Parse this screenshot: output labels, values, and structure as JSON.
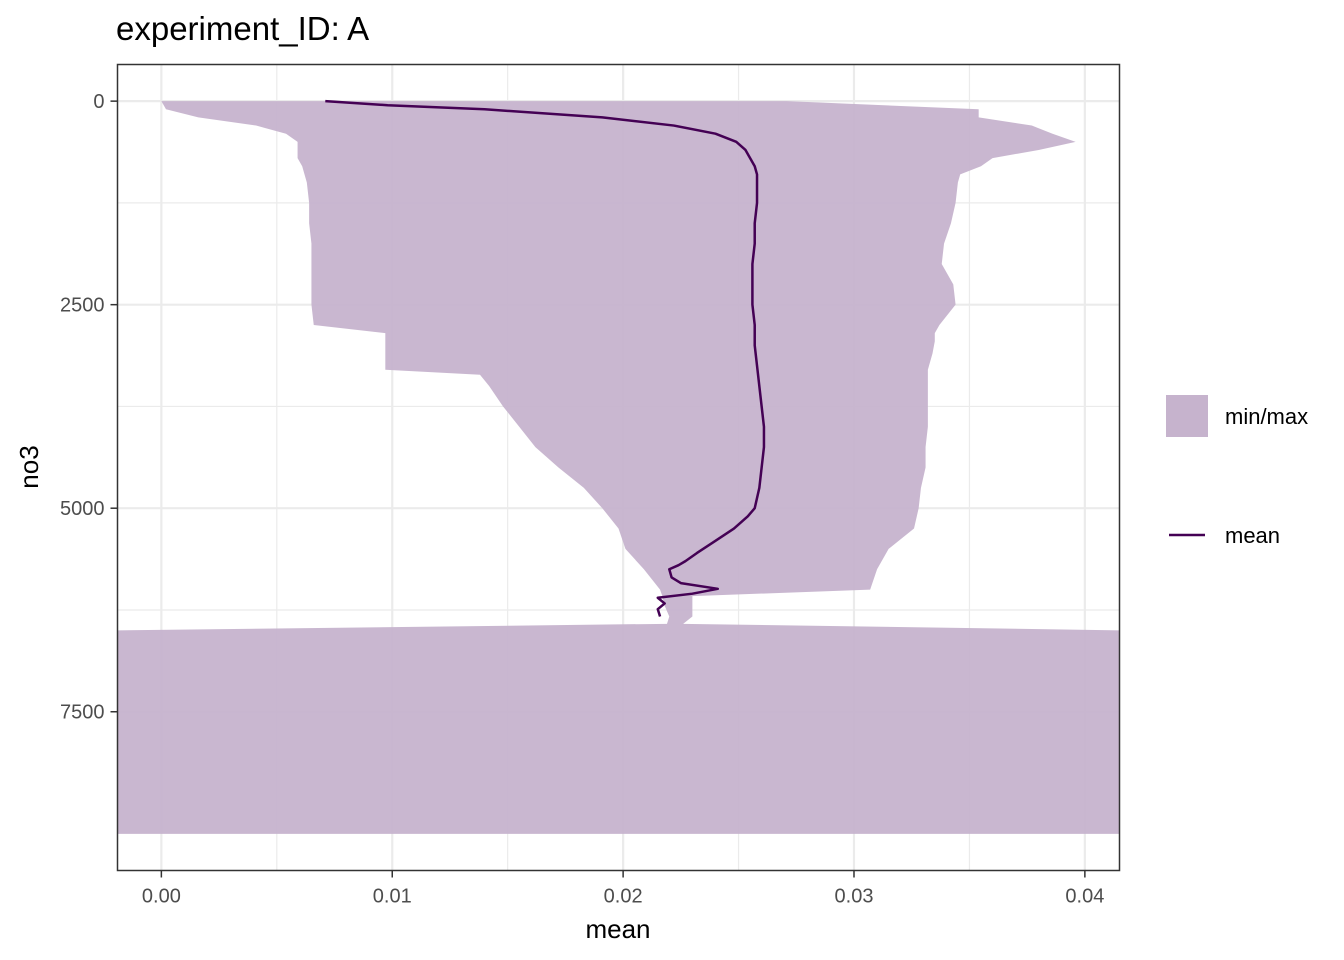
{
  "chart_data": {
    "type": "area",
    "title": "experiment_ID: A",
    "xlabel": "mean",
    "ylabel": "no3",
    "xlim": [
      -0.0019,
      0.0415
    ],
    "ylim": [
      9450,
      -450
    ],
    "y_reversed": true,
    "x_ticks": [
      0.0,
      0.01,
      0.02,
      0.03,
      0.04
    ],
    "x_tick_labels": [
      "0.00",
      "0.01",
      "0.02",
      "0.03",
      "0.04"
    ],
    "y_ticks": [
      0,
      2500,
      5000,
      7500
    ],
    "y_tick_labels": [
      "0",
      "2500",
      "5000",
      "7500"
    ],
    "grid": true,
    "legend_position": "right",
    "colors": {
      "ribbon": "#c6b3cd",
      "mean_line": "#440154",
      "grid": "#ebebeb",
      "panel_border": "#333333"
    },
    "series": [
      {
        "name": "min/max",
        "kind": "ribbon",
        "depth": [
          0,
          100,
          200,
          300,
          400,
          500,
          600,
          700,
          800,
          900,
          1000,
          1250,
          1500,
          1750,
          2000,
          2250,
          2500,
          2750,
          2850,
          2950,
          3100,
          3300,
          3360,
          3500,
          3750,
          4000,
          4250,
          4500,
          4750,
          5000,
          5250,
          5500,
          5750,
          6000,
          6080,
          6200,
          6330,
          6420,
          6500,
          7000,
          7500,
          8000,
          8500,
          9000
        ],
        "min": [
          0.0,
          0.0002,
          0.0016,
          0.0041,
          0.0054,
          0.0059,
          0.0059,
          0.0059,
          0.0061,
          0.0062,
          0.0063,
          0.0064,
          0.0064,
          0.0065,
          0.0065,
          0.0065,
          0.0065,
          0.0066,
          0.0097,
          0.0097,
          0.0097,
          0.0097,
          0.0138,
          0.0142,
          0.0148,
          0.0155,
          0.0162,
          0.0172,
          0.0183,
          0.0191,
          0.0198,
          0.0201,
          0.0209,
          0.0216,
          0.0217,
          0.0218,
          0.022,
          0.0219,
          -0.0019,
          -0.0019,
          -0.0019,
          -0.0019,
          -0.0019,
          -0.0019
        ],
        "max": [
          0.0271,
          0.0354,
          0.0354,
          0.0377,
          0.0386,
          0.0396,
          0.038,
          0.036,
          0.0355,
          0.0346,
          0.0345,
          0.0344,
          0.0342,
          0.0339,
          0.0338,
          0.0343,
          0.0344,
          0.0337,
          0.0335,
          0.0335,
          0.0334,
          0.0332,
          0.0332,
          0.0332,
          0.0332,
          0.0332,
          0.0331,
          0.0331,
          0.0329,
          0.0328,
          0.0326,
          0.0315,
          0.031,
          0.0307,
          0.023,
          0.023,
          0.023,
          0.0226,
          0.0415,
          0.0415,
          0.0415,
          0.0415,
          0.0415,
          0.0415
        ]
      },
      {
        "name": "mean",
        "kind": "line",
        "depth": [
          0,
          50,
          100,
          200,
          300,
          400,
          500,
          600,
          700,
          800,
          900,
          1000,
          1250,
          1500,
          1750,
          2000,
          2250,
          2500,
          2750,
          3000,
          3250,
          3500,
          3750,
          4000,
          4250,
          4500,
          4750,
          5000,
          5100,
          5250,
          5400,
          5550,
          5650,
          5700,
          5750,
          5850,
          5920,
          5990,
          6050,
          6100,
          6170,
          6240,
          6330
        ],
        "values": [
          0.0071,
          0.0098,
          0.014,
          0.0191,
          0.0222,
          0.024,
          0.0249,
          0.0253,
          0.0255,
          0.0257,
          0.0258,
          0.0258,
          0.0258,
          0.0257,
          0.0257,
          0.0256,
          0.0256,
          0.0256,
          0.0257,
          0.0257,
          0.0258,
          0.0259,
          0.026,
          0.0261,
          0.0261,
          0.026,
          0.0259,
          0.0257,
          0.0254,
          0.0248,
          0.024,
          0.0232,
          0.0227,
          0.0224,
          0.022,
          0.0221,
          0.0225,
          0.0241,
          0.023,
          0.0215,
          0.0218,
          0.0215,
          0.0216
        ]
      }
    ]
  }
}
